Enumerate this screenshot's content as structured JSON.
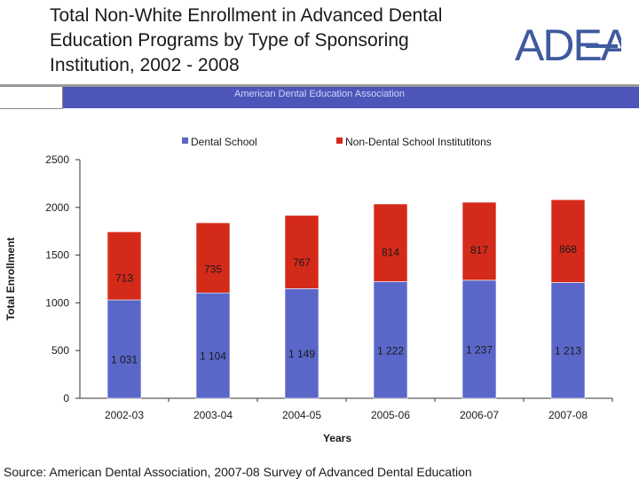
{
  "slide": {
    "title": "Total Non-White Enrollment in Advanced  Dental\nEducation Programs by Type of Sponsoring\nInstitution, 2002 - 2008",
    "logo_text": "ADEA",
    "banner": "American Dental Education Association",
    "source": "Source: American Dental Association, 2007-08 Survey of Advanced Dental Education"
  },
  "colors": {
    "dental": "#5b67c8",
    "non_dental": "#d42a1a",
    "banner": "#4d55b8",
    "logo": "#3f5a9e"
  },
  "chart_data": {
    "type": "bar",
    "stacked": true,
    "categories": [
      "2002-03",
      "2003-04",
      "2004-05",
      "2005-06",
      "2006-07",
      "2007-08"
    ],
    "series": [
      {
        "name": "Dental School",
        "values": [
          1031,
          1104,
          1149,
          1222,
          1237,
          1213
        ],
        "labels": [
          "1 031",
          "1 104",
          "1 149",
          "1 222",
          "1 237",
          "1 213"
        ]
      },
      {
        "name": "Non-Dental School Institutitons",
        "values": [
          713,
          735,
          767,
          814,
          817,
          868
        ],
        "labels": [
          "713",
          "735",
          "767",
          "814",
          "817",
          "868"
        ]
      }
    ],
    "xlabel": "Years",
    "ylabel": "Total Enrollment",
    "ylim": [
      0,
      2500
    ],
    "yticks": [
      "0",
      "500",
      "1000",
      "1500",
      "2000",
      "2500"
    ],
    "legend": "top",
    "grid": false
  }
}
